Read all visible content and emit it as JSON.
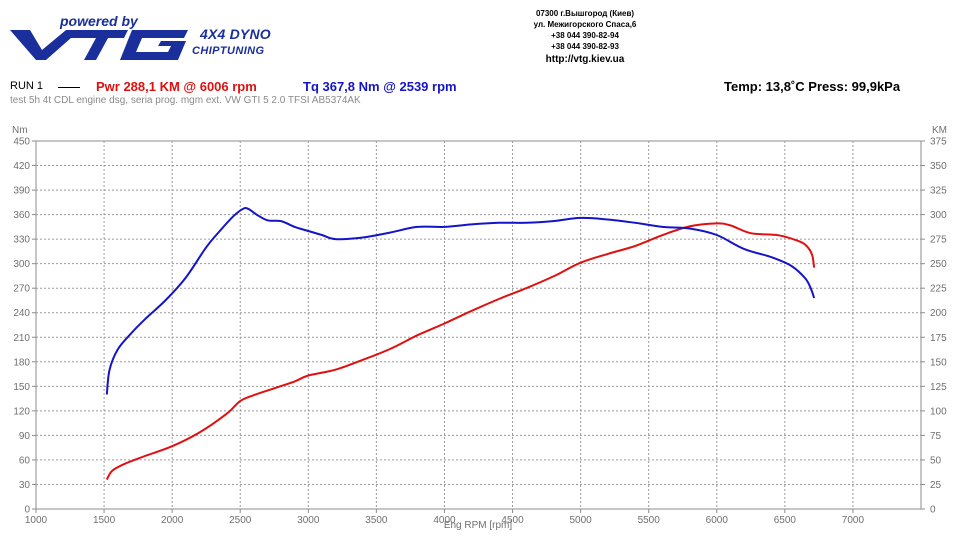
{
  "header": {
    "logo_text": "powered by VTG",
    "brand_line1": "4X4 DYNO",
    "brand_line2": "CHIPTUNING",
    "address": {
      "line1": "07300 г.Вышгород (Киев)",
      "line2": "ул. Межигорского Спаса,6",
      "phone1": "+38 044 390-82-94",
      "phone2": "+38 044 390-82-93",
      "site": "http://vtg.kiev.ua"
    }
  },
  "run": {
    "label": "RUN 1",
    "pwr": "Pwr  288,1 KM @ 6006 rpm",
    "tq": "Tq  367,8 Nm @ 2539 rpm",
    "conditions": "Temp: 13,8˚C    Press: 99,9kPa",
    "description": "test  5h 4t  CDL engine dsg, seria prog. mgm ext. VW GTI 5 2.0 TFSI AB5374AK"
  },
  "colors": {
    "power": "#e01010",
    "torque": "#1414c8",
    "grid": "#9a9a9a"
  },
  "chart_data": {
    "type": "line",
    "xlabel": "Eng RPM [rpm]",
    "ylabel_left": "Nm",
    "ylabel_right": "KM",
    "xlim": [
      1000,
      7500
    ],
    "ylim_left": [
      0,
      450
    ],
    "ylim_right": [
      0,
      375
    ],
    "x_ticks": [
      1000,
      1500,
      2000,
      2500,
      3000,
      3500,
      4000,
      4500,
      5000,
      5500,
      6000,
      6500,
      7000
    ],
    "y_ticks_left": [
      0,
      30,
      60,
      90,
      120,
      150,
      180,
      210,
      240,
      270,
      300,
      330,
      360,
      390,
      420,
      450
    ],
    "y_ticks_right": [
      0,
      25,
      50,
      75,
      100,
      125,
      150,
      175,
      200,
      225,
      250,
      275,
      300,
      325,
      350,
      375
    ],
    "grid": true,
    "series": [
      {
        "name": "Pwr",
        "axis": "right",
        "unit": "KM",
        "x": [
          1520,
          1560,
          1650,
          1800,
          2000,
          2200,
          2400,
          2500,
          2600,
          2750,
          2900,
          3000,
          3200,
          3400,
          3600,
          3800,
          4000,
          4200,
          4400,
          4600,
          4800,
          5000,
          5200,
          5400,
          5600,
          5800,
          6000,
          6100,
          6250,
          6450,
          6600,
          6660,
          6700,
          6715
        ],
        "values": [
          30,
          39,
          46,
          54,
          64,
          78,
          97,
          110,
          116,
          123,
          130,
          136,
          142,
          152,
          163,
          177,
          189,
          202,
          214,
          225,
          237,
          251,
          260,
          268,
          279,
          288,
          291,
          289,
          281,
          279,
          273,
          268,
          259,
          246
        ]
      },
      {
        "name": "Tq",
        "axis": "left",
        "unit": "Nm",
        "x": [
          1520,
          1540,
          1600,
          1700,
          1800,
          1950,
          2100,
          2250,
          2350,
          2450,
          2520,
          2560,
          2620,
          2700,
          2800,
          2900,
          3000,
          3100,
          3200,
          3400,
          3600,
          3800,
          4000,
          4200,
          4400,
          4600,
          4800,
          5000,
          5200,
          5400,
          5600,
          5800,
          6000,
          6200,
          6400,
          6550,
          6650,
          6690,
          6715
        ],
        "values": [
          140,
          170,
          195,
          215,
          232,
          255,
          283,
          320,
          340,
          358,
          367,
          367,
          360,
          353,
          352,
          345,
          340,
          335,
          330,
          332,
          338,
          345,
          345,
          348,
          350,
          350,
          352,
          356,
          354,
          350,
          345,
          343,
          335,
          318,
          308,
          297,
          282,
          270,
          258
        ]
      }
    ]
  }
}
